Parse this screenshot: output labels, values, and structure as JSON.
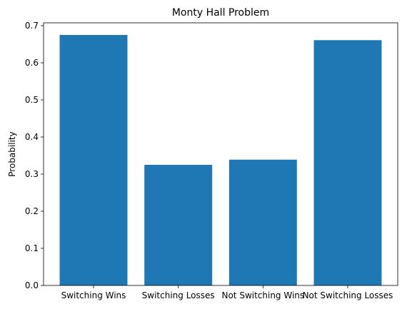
{
  "chart_data": {
    "type": "bar",
    "title": "Monty Hall Problem",
    "xlabel": "",
    "ylabel": "Probability",
    "categories": [
      "Switching Wins",
      "Switching Losses",
      "Not Switching Wins",
      "Not Switching Losses"
    ],
    "values": [
      0.675,
      0.325,
      0.339,
      0.661
    ],
    "ylim": [
      0,
      0.7077
    ],
    "yticks": [
      "0.0",
      "0.1",
      "0.2",
      "0.3",
      "0.4",
      "0.5",
      "0.6",
      "0.7"
    ],
    "bar_color": "#1f77b4",
    "grid": false,
    "legend": "none"
  }
}
